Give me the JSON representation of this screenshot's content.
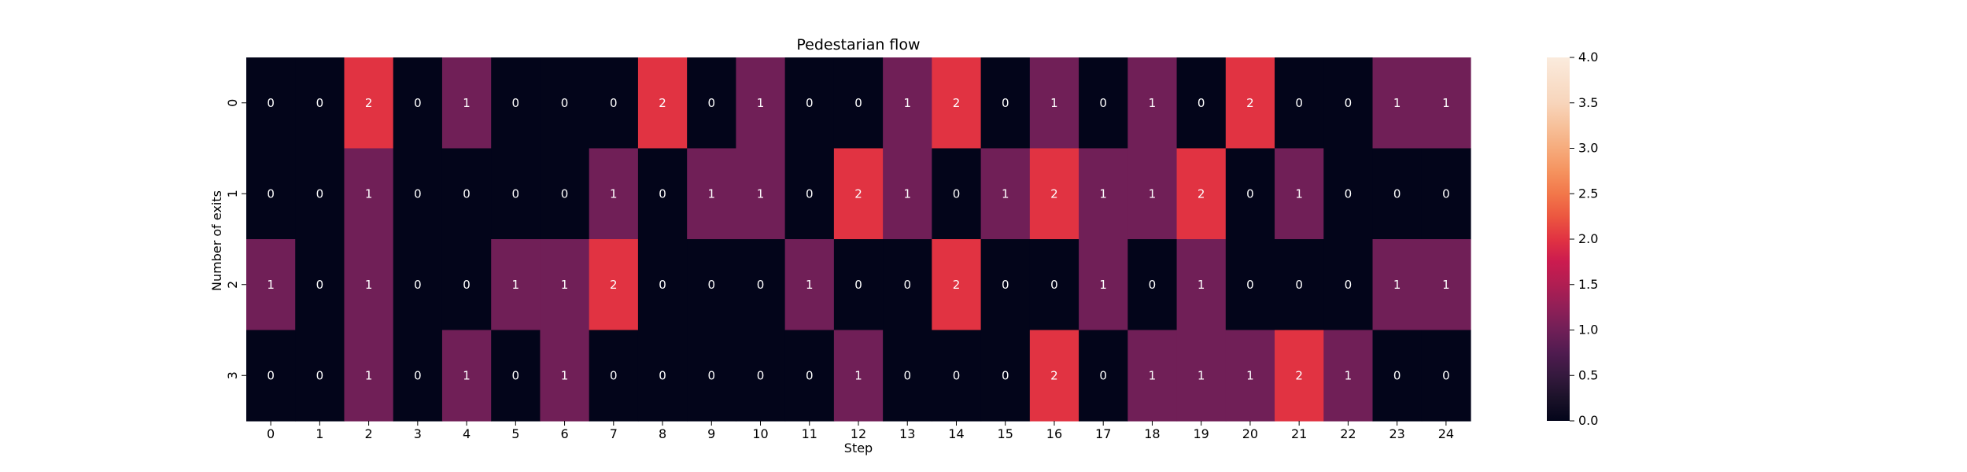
{
  "chart_data": {
    "type": "heatmap",
    "title": "Pedestarian flow",
    "xlabel": "Step",
    "ylabel": "Number of exits",
    "x_categories": [
      "0",
      "1",
      "2",
      "3",
      "4",
      "5",
      "6",
      "7",
      "8",
      "9",
      "10",
      "11",
      "12",
      "13",
      "14",
      "15",
      "16",
      "17",
      "18",
      "19",
      "20",
      "21",
      "22",
      "23",
      "24"
    ],
    "y_categories": [
      "0",
      "1",
      "2",
      "3"
    ],
    "values": [
      [
        0,
        0,
        2,
        0,
        1,
        0,
        0,
        0,
        2,
        0,
        1,
        0,
        0,
        1,
        2,
        0,
        1,
        0,
        1,
        0,
        2,
        0,
        0,
        1,
        1
      ],
      [
        0,
        0,
        1,
        0,
        0,
        0,
        0,
        1,
        0,
        1,
        1,
        0,
        2,
        1,
        0,
        1,
        2,
        1,
        1,
        2,
        0,
        1,
        0,
        0,
        0
      ],
      [
        1,
        0,
        1,
        0,
        0,
        1,
        1,
        2,
        0,
        0,
        0,
        1,
        0,
        0,
        2,
        0,
        0,
        1,
        0,
        1,
        0,
        0,
        0,
        1,
        1
      ],
      [
        0,
        0,
        1,
        0,
        1,
        0,
        1,
        0,
        0,
        0,
        0,
        0,
        1,
        0,
        0,
        0,
        2,
        0,
        1,
        1,
        1,
        2,
        1,
        0,
        0
      ]
    ],
    "annotated": true,
    "colorbar": {
      "vmin": 0.0,
      "vmax": 4.0,
      "ticks": [
        "0.0",
        "0.5",
        "1.0",
        "1.5",
        "2.0",
        "2.5",
        "3.0",
        "3.5",
        "4.0"
      ],
      "colormap": "rocket"
    },
    "colors": {
      "cell_0": "#03051a",
      "cell_1": "#701f57",
      "cell_2": "#cb1b4f",
      "text_dark_cell": "#ffffff"
    }
  }
}
